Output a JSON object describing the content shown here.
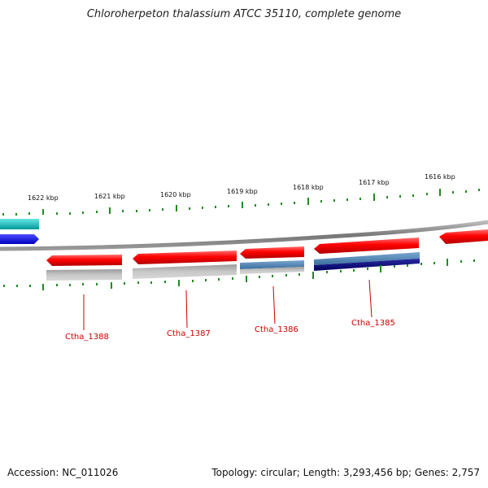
{
  "title": "Chloroherpeton thalassium ATCC 35110, complete genome",
  "footer": {
    "accession": "Accession: NC_011026",
    "summary": "Topology: circular; Length: 3,293,456 bp; Genes: 2,757"
  },
  "scale_labels": [
    "1622 kbp",
    "1621 kbp",
    "1620 kbp",
    "1619 kbp",
    "1618 kbp",
    "1617 kbp",
    "1616 kbp"
  ],
  "gene_labels": [
    "Ctha_1388",
    "Ctha_1387",
    "Ctha_1386",
    "Ctha_1385"
  ],
  "colors": {
    "gene_red": "#ff0000",
    "tick_green": "#228b22",
    "backbone_gray": "#888888",
    "label_red": "#cc0000",
    "cyan": "#00c8c8",
    "blue": "#1a1aff",
    "steel_blue": "#4682b4",
    "navy": "#000080",
    "light_gray": "#b8b8b8"
  }
}
